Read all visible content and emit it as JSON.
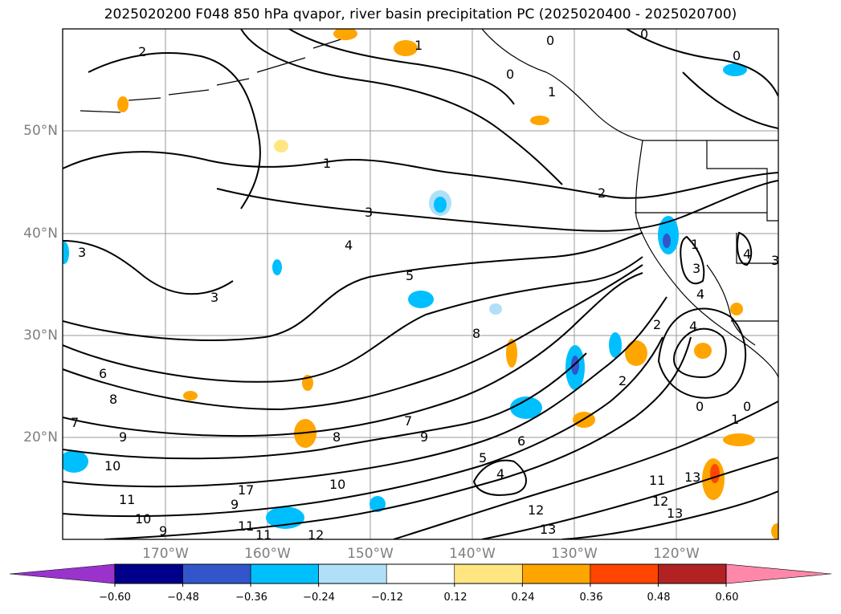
{
  "title": "2025020200 F048 850 hPa qvapor, river basin precipitation PC (2025020400 - 2025020700)",
  "lat_labels": [
    "50°N",
    "40°N",
    "30°N",
    "20°N"
  ],
  "lon_labels": [
    "170°W",
    "160°W",
    "150°W",
    "140°W",
    "130°W",
    "120°W"
  ],
  "colorbar": {
    "ticks": [
      "−0.60",
      "−0.48",
      "−0.36",
      "−0.24",
      "−0.12",
      "0.12",
      "0.24",
      "0.36",
      "0.48",
      "0.60"
    ],
    "colors": [
      "#9933cc",
      "#00008b",
      "#3355cc",
      "#00bfff",
      "#b0e0f8",
      "#ffffff",
      "#ffe680",
      "#ffa500",
      "#ff4500",
      "#b22222",
      "#ff88aa"
    ]
  },
  "contour_labels": [
    "2",
    "1",
    "1",
    "0",
    "0",
    "0",
    "0",
    "1",
    "2",
    "3",
    "4",
    "5",
    "3",
    "3",
    "6",
    "8",
    "9",
    "7",
    "8",
    "7",
    "8",
    "9",
    "10",
    "11",
    "10",
    "9",
    "11",
    "12",
    "13",
    "9",
    "10",
    "11",
    "12",
    "13",
    "4",
    "5",
    "6",
    "4",
    "3",
    "4",
    "2",
    "1",
    "0",
    "0",
    "1",
    "2",
    "3",
    "4",
    "13",
    "12",
    "11",
    "17"
  ]
}
